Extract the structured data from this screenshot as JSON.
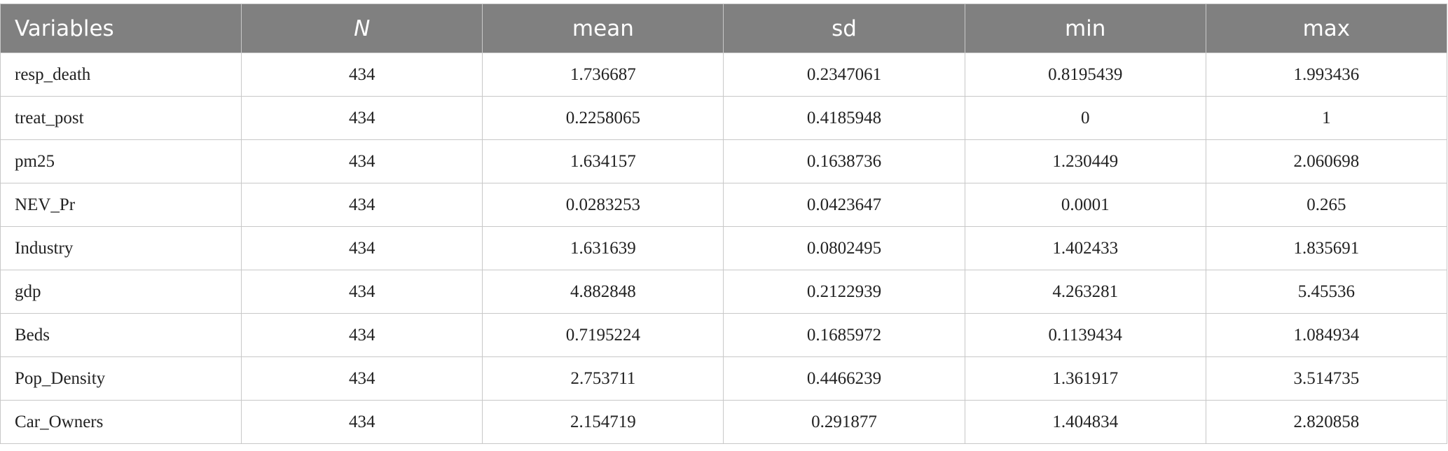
{
  "table": {
    "header": [
      "Variables",
      "N",
      "mean",
      "sd",
      "min",
      "max"
    ],
    "rows": [
      [
        "resp_death",
        "434",
        "1.736687",
        "0.2347061",
        "0.8195439",
        "1.993436"
      ],
      [
        "treat_post",
        "434",
        "0.2258065",
        "0.4185948",
        "0",
        "1"
      ],
      [
        "pm25",
        "434",
        "1.634157",
        "0.1638736",
        "1.230449",
        "2.060698"
      ],
      [
        "NEV_Pr",
        "434",
        "0.0283253",
        "0.0423647",
        "0.0001",
        "0.265"
      ],
      [
        "Industry",
        "434",
        "1.631639",
        "0.0802495",
        "1.402433",
        "1.835691"
      ],
      [
        "gdp",
        "434",
        "4.882848",
        "0.2122939",
        "4.263281",
        "5.45536"
      ],
      [
        "Beds",
        "434",
        "0.7195224",
        "0.1685972",
        "0.1139434",
        "1.084934"
      ],
      [
        "Pop_Density",
        "434",
        "2.753711",
        "0.4466239",
        "1.361917",
        "3.514735"
      ],
      [
        "Car_Owners",
        "434",
        "2.154719",
        "0.291877",
        "1.404834",
        "2.820858"
      ]
    ]
  }
}
